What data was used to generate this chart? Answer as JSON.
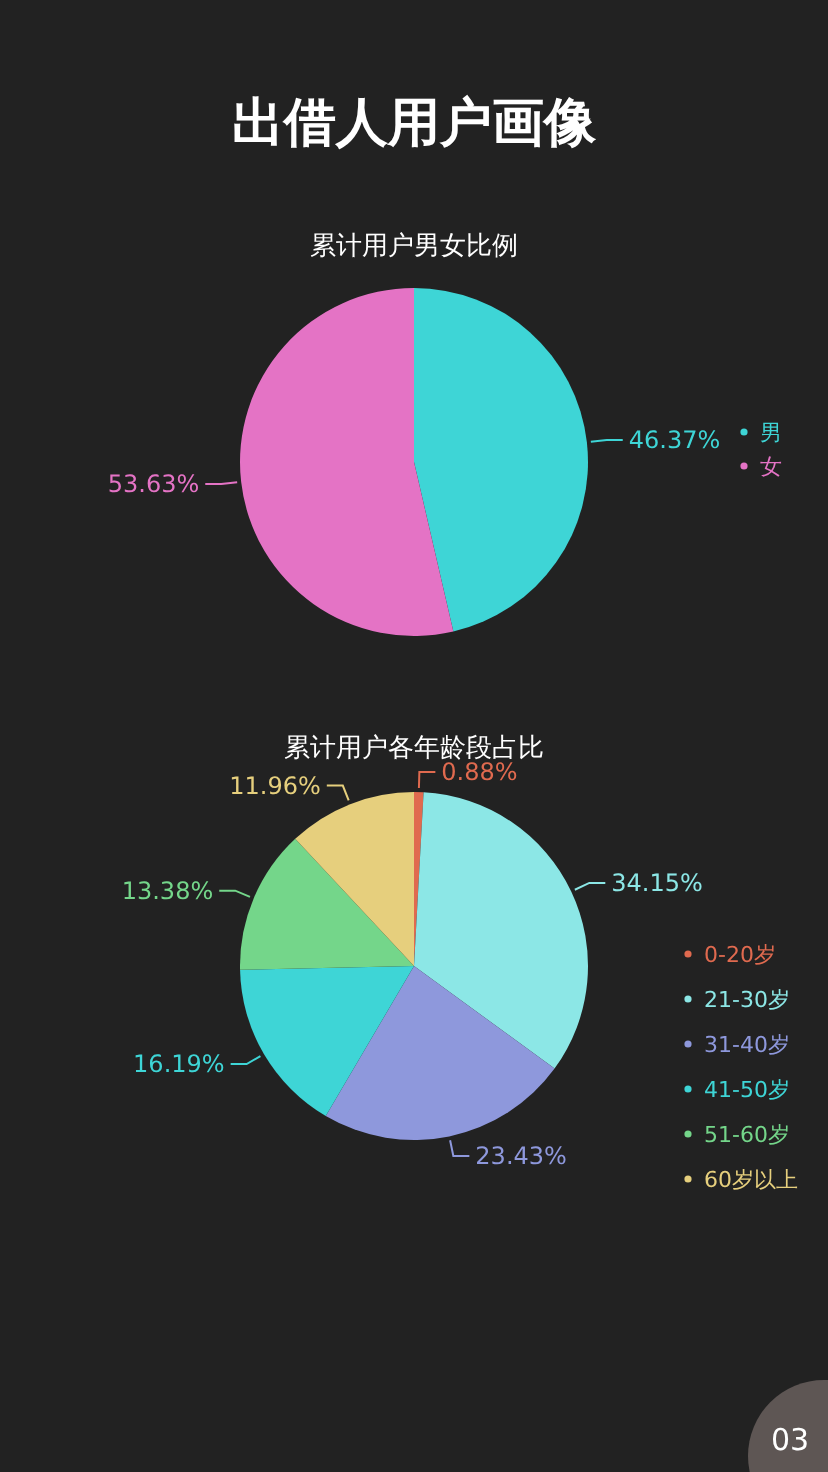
{
  "chart_data": [
    {
      "type": "pie",
      "title": "出借人用户画像",
      "subtitle": "累计用户男女比例",
      "categories": [
        "男",
        "女"
      ],
      "values": [
        46.37,
        53.63
      ],
      "colors": [
        "#3ed5d6",
        "#e473c5"
      ],
      "value_labels": [
        "46.37%",
        "53.63%"
      ],
      "legend": "right"
    },
    {
      "type": "pie",
      "title": "累计用户各年龄段占比",
      "categories": [
        "0-20岁",
        "21-30岁",
        "31-40岁",
        "41-50岁",
        "51-60岁",
        "60岁以上"
      ],
      "values": [
        0.88,
        34.15,
        23.43,
        16.19,
        13.38,
        11.96
      ],
      "colors": [
        "#e06a4f",
        "#8ce7e6",
        "#8e98dc",
        "#3ed5d6",
        "#74d68a",
        "#e6cf7d"
      ],
      "value_labels": [
        "0.88%",
        "34.15%",
        "23.43%",
        "16.19%",
        "13.38%",
        "11.96%"
      ],
      "legend": "right",
      "annotations": [
        "03"
      ]
    }
  ]
}
